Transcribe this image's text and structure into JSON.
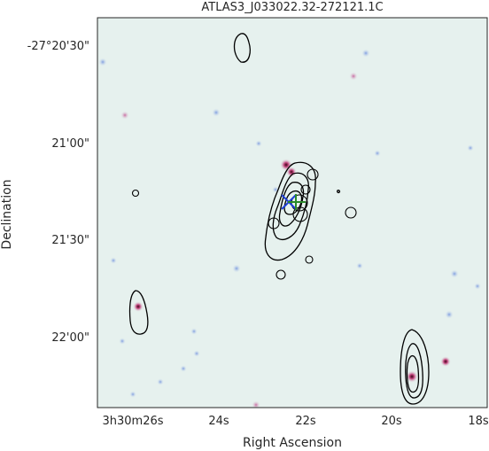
{
  "figure": {
    "title": "ATLAS3_J033022.32-272121.1C",
    "xlabel": "Right Ascension",
    "ylabel": "Declination",
    "x_ticks": [
      "3h30m26s",
      "24s",
      "22s",
      "20s",
      "18s"
    ],
    "y_ticks": [
      "-27°20'30\"",
      "21'00\"",
      "21'30\"",
      "22'00\""
    ],
    "colors": {
      "background": "#e6f1ee",
      "contour": "#000000",
      "cross_blue": "#1f3fd6",
      "cross_green": "#2a8a2a",
      "source_magenta": "#c0407a",
      "source_blue": "#8aa6e0"
    },
    "markers": {
      "blue_cross": "x-marker",
      "green_cross": "plus-marker",
      "circles": "open-circle-markers"
    }
  }
}
